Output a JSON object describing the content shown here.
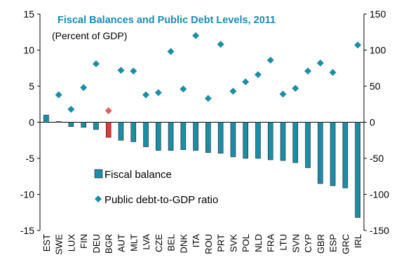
{
  "chart_data": {
    "type": "bar",
    "title": "Fiscal Balances and Public Debt Levels, 2011",
    "subtitle": "(Percent of GDP)",
    "categories": [
      "EST",
      "SWE",
      "LUX",
      "FIN",
      "DEU",
      "BGR",
      "AUT",
      "MLT",
      "LVA",
      "CZE",
      "BEL",
      "DNK",
      "ITA",
      "ROU",
      "PRT",
      "SVK",
      "POL",
      "NLD",
      "FRA",
      "LTU",
      "SVN",
      "CYP",
      "GBR",
      "ESP",
      "GRC",
      "IRL"
    ],
    "series": [
      {
        "name": "Fiscal balance",
        "axis": "left",
        "kind": "bar",
        "values": [
          1.0,
          0.1,
          -0.6,
          -0.7,
          -1.0,
          -2.1,
          -2.5,
          -2.7,
          -3.4,
          -3.9,
          -3.9,
          -3.8,
          -3.9,
          -4.2,
          -4.3,
          -4.8,
          -5.0,
          -5.0,
          -5.2,
          -5.3,
          -5.6,
          -6.3,
          -8.5,
          -8.8,
          -9.1,
          -13.2
        ]
      },
      {
        "name": "Public debt-to-GDP ratio",
        "axis": "right",
        "kind": "scatter",
        "values": [
          6,
          38,
          18,
          48,
          81,
          16,
          72,
          71,
          38,
          41,
          98,
          46,
          120,
          33,
          108,
          43,
          56,
          66,
          86,
          39,
          47,
          71,
          82,
          69,
          null,
          107
        ]
      }
    ],
    "highlight_index": 5,
    "y_left": {
      "min": -15,
      "max": 15,
      "ticks": [
        -15,
        -10,
        -5,
        0,
        5,
        10,
        15
      ]
    },
    "y_right": {
      "min": -150,
      "max": 150,
      "ticks": [
        -150,
        -100,
        -50,
        0,
        50,
        100,
        150
      ]
    },
    "colors": {
      "bar": "#1b8ea6",
      "bar_highlight": "#d93b3b",
      "marker": "#1b8ea6",
      "marker_highlight": "#e06060",
      "title": "#1a8bb4"
    },
    "legend_position": "lower-left"
  }
}
